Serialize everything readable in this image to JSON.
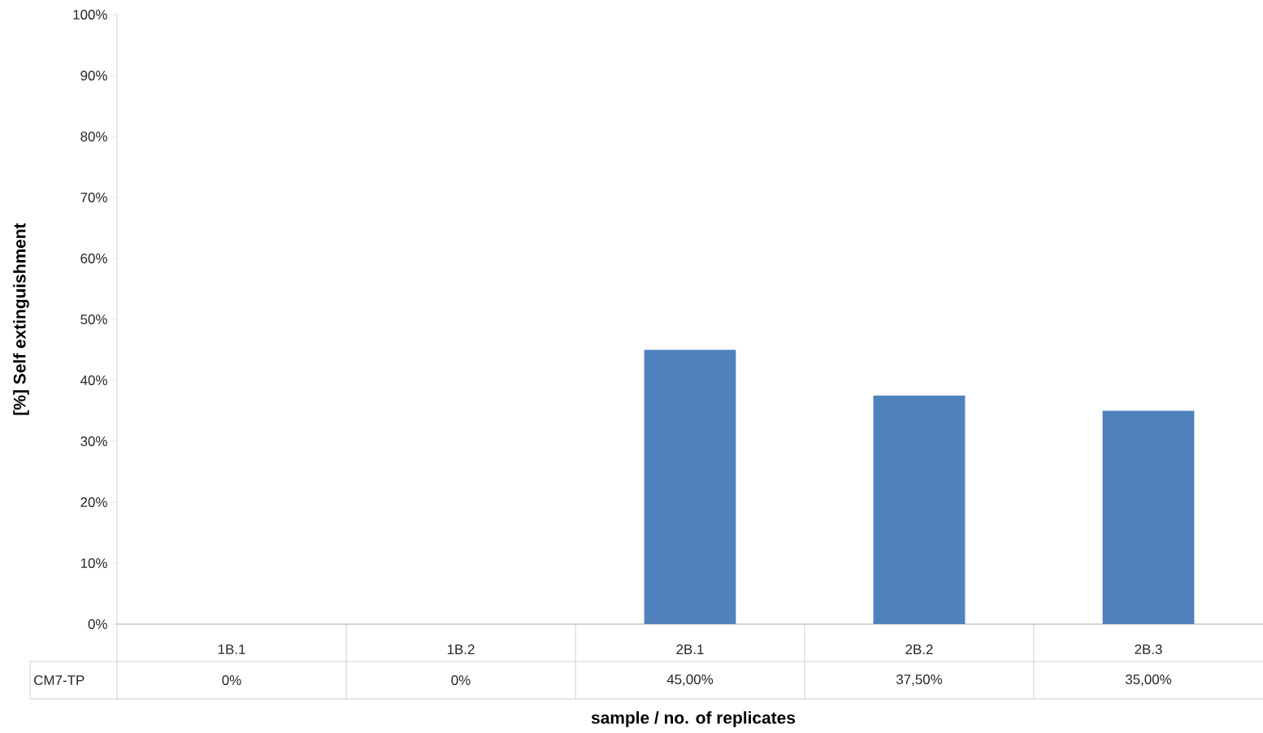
{
  "chart_data": {
    "type": "bar",
    "xlabel": "sample / no. of replicates",
    "ylabel": "[%] Self extinguishment",
    "categories": [
      "1B.1",
      "1B.2",
      "2B.1",
      "2B.2",
      "2B.3"
    ],
    "series": [
      {
        "name": "CM7-TP",
        "color": "#4f81bd",
        "values": [
          0,
          0,
          45,
          37.5,
          35
        ],
        "value_labels": [
          "0%",
          "0%",
          "45,00%",
          "37,50%",
          "35,00%"
        ]
      }
    ],
    "ylim": [
      0,
      100
    ],
    "yticks": [
      {
        "value": 0,
        "label": "0%"
      },
      {
        "value": 10,
        "label": "10%"
      },
      {
        "value": 20,
        "label": "20%"
      },
      {
        "value": 30,
        "label": "30%"
      },
      {
        "value": 40,
        "label": "40%"
      },
      {
        "value": 50,
        "label": "50%"
      },
      {
        "value": 60,
        "label": "60%"
      },
      {
        "value": 70,
        "label": "70%"
      },
      {
        "value": 80,
        "label": "80%"
      },
      {
        "value": 90,
        "label": "90%"
      },
      {
        "value": 100,
        "label": "100%"
      }
    ]
  }
}
